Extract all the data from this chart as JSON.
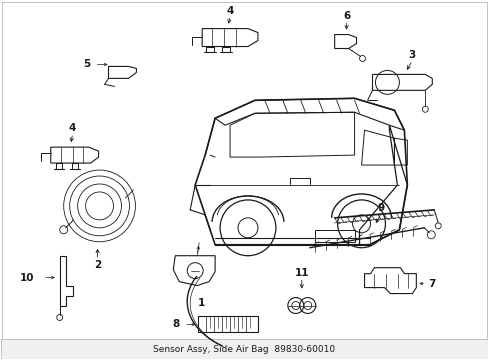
{
  "background_color": "#ffffff",
  "line_color": "#1a1a1a",
  "fig_width": 4.89,
  "fig_height": 3.6,
  "dpi": 100,
  "border_color": "#cccccc",
  "label_fontsize": 7.5,
  "comp_lw": 0.7
}
